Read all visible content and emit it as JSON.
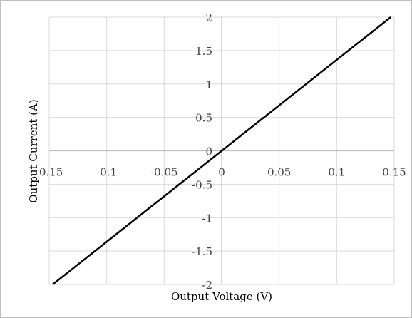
{
  "chart_data": {
    "type": "line",
    "title": "",
    "xlabel": "Output Voltage (V)",
    "ylabel": "Output Current (A)",
    "xlim": [
      -0.15,
      0.15
    ],
    "ylim": [
      -2,
      2
    ],
    "x_ticks": [
      -0.15,
      -0.1,
      -0.05,
      0,
      0.05,
      0.1,
      0.15
    ],
    "x_tick_labels": [
      "-0.15",
      "-0.1",
      "-0.05",
      "0",
      "0.05",
      "0.1",
      "0.15"
    ],
    "y_ticks": [
      -2,
      -1.5,
      -1,
      -0.5,
      0,
      0.5,
      1,
      1.5,
      2
    ],
    "y_tick_labels": [
      "-2",
      "-1.5",
      "-1",
      "-0.5",
      "0",
      "0.5",
      "1",
      "1.5",
      "2"
    ],
    "grid": true,
    "legend": "none",
    "series": [
      {
        "x": [
          -0.147,
          0.147
        ],
        "y": [
          -2,
          2
        ],
        "color": "#000000"
      }
    ],
    "colors": {
      "grid": "#d9d9d9",
      "axis": "#bfbfbf",
      "line": "#000000",
      "tick_text": "#404040"
    }
  }
}
